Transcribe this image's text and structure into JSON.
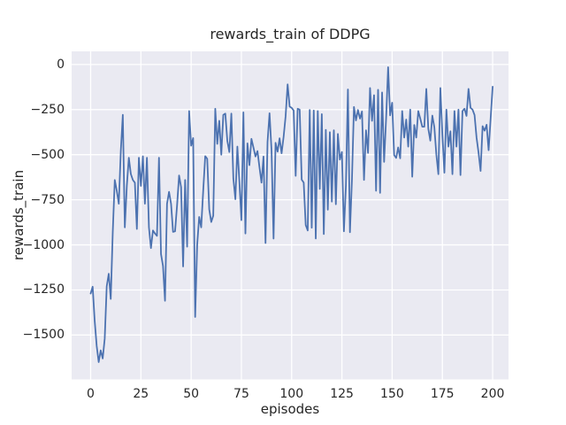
{
  "chart_data": {
    "type": "line",
    "title": "rewards_train of DDPG",
    "xlabel": "episodes",
    "ylabel": "rewards_train",
    "x_ticks": [
      0,
      25,
      50,
      75,
      100,
      125,
      150,
      175,
      200
    ],
    "y_ticks": [
      0,
      -250,
      -500,
      -750,
      -1000,
      -1250,
      -1500
    ],
    "xlim": [
      -9.46,
      207.9
    ],
    "ylim": [
      -1746,
      73
    ],
    "grid": true,
    "legend_position": "none",
    "series": [
      {
        "name": "rewards_train",
        "color": "#4c72b0",
        "x_start": 0,
        "x_step": 1,
        "values": [
          -1270,
          -1232,
          -1420,
          -1560,
          -1650,
          -1585,
          -1630,
          -1520,
          -1230,
          -1160,
          -1300,
          -930,
          -640,
          -700,
          -772,
          -480,
          -279,
          -903,
          -673,
          -517,
          -607,
          -640,
          -655,
          -912,
          -517,
          -673,
          -509,
          -772,
          -517,
          -903,
          -1018,
          -920,
          -937,
          -950,
          -517,
          -1051,
          -1117,
          -1310,
          -772,
          -706,
          -772,
          -928,
          -925,
          -780,
          -615,
          -680,
          -1120,
          -640,
          -1010,
          -258,
          -450,
          -408,
          -1400,
          -1000,
          -845,
          -903,
          -700,
          -508,
          -523,
          -803,
          -873,
          -838,
          -245,
          -440,
          -312,
          -500,
          -279,
          -272,
          -423,
          -485,
          -272,
          -632,
          -747,
          -455,
          -650,
          -863,
          -265,
          -937,
          -437,
          -558,
          -412,
          -460,
          -510,
          -480,
          -570,
          -655,
          -510,
          -990,
          -430,
          -270,
          -477,
          -965,
          -434,
          -483,
          -409,
          -492,
          -401,
          -287,
          -110,
          -233,
          -240,
          -255,
          -617,
          -245,
          -250,
          -638,
          -655,
          -890,
          -920,
          -252,
          -905,
          -255,
          -965,
          -258,
          -690,
          -275,
          -940,
          -362,
          -805,
          -375,
          -760,
          -365,
          -775,
          -385,
          -527,
          -485,
          -925,
          -670,
          -138,
          -930,
          -640,
          -235,
          -310,
          -252,
          -300,
          -260,
          -640,
          -365,
          -490,
          -130,
          -312,
          -170,
          -700,
          -140,
          -712,
          -155,
          -540,
          -300,
          -15,
          -282,
          -212,
          -502,
          -518,
          -460,
          -520,
          -258,
          -405,
          -305,
          -455,
          -250,
          -622,
          -335,
          -405,
          -258,
          -300,
          -345,
          -345,
          -135,
          -357,
          -422,
          -283,
          -348,
          -500,
          -608,
          -130,
          -390,
          -600,
          -250,
          -455,
          -370,
          -608,
          -258,
          -455,
          -250,
          -613,
          -258,
          -245,
          -285,
          -135,
          -240,
          -250,
          -280,
          -405,
          -490,
          -590,
          -342,
          -367,
          -334,
          -475,
          -300,
          -123
        ]
      }
    ]
  },
  "style": {
    "figure_bg": "#ffffff",
    "plot_bg": "#eaeaf2",
    "grid_color": "#ffffff",
    "line_color": "#4c72b0",
    "text_color": "#262626"
  }
}
